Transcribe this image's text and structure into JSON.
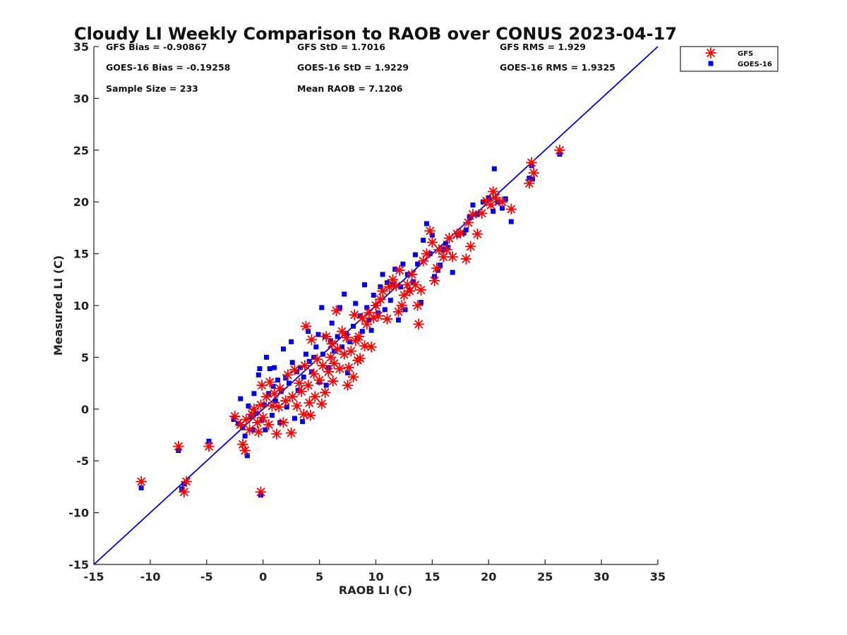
{
  "chart_data": {
    "type": "scatter",
    "title": "Cloudy LI Weekly Comparison to RAOB over CONUS 2023-04-17",
    "xlabel": "RAOB LI (C)",
    "ylabel": "Measured LI (C)",
    "xlim": [
      -15,
      35
    ],
    "ylim": [
      -15,
      35
    ],
    "xticks": [
      "-15",
      "-10",
      "-5",
      "0",
      "5",
      "10",
      "15",
      "20",
      "25",
      "30",
      "35"
    ],
    "yticks": [
      "35",
      "30",
      "25",
      "20",
      "15",
      "10",
      "5",
      "0",
      "-5",
      "-10",
      "-15"
    ],
    "grid": false,
    "legend_position": "top-right",
    "reference_line": {
      "x": [
        -15,
        35
      ],
      "y": [
        -15,
        35
      ],
      "color": "#0000dd"
    },
    "stats": {
      "gfs_bias": "GFS Bias = -0.90867",
      "gfs_std": "GFS StD = 1.7016",
      "gfs_rms": "GFS RMS = 1.929",
      "goes_bias": "GOES-16 Bias = -0.19258",
      "goes_std": "GOES-16 StD = 1.9229",
      "goes_rms": "GOES-16 RMS = 1.9325",
      "sample_size": "Sample Size = 233",
      "mean_raob": "Mean RAOB = 7.1206"
    },
    "series": [
      {
        "name": "GFS",
        "marker": "asterisk",
        "color": "#ff0000",
        "points": [
          [
            -10.8,
            -7.0
          ],
          [
            -7.5,
            -3.6
          ],
          [
            -7.0,
            -8.0
          ],
          [
            -6.8,
            -7.0
          ],
          [
            -4.8,
            -3.6
          ],
          [
            -0.2,
            -8.0
          ],
          [
            -2.5,
            -0.7
          ],
          [
            -2.0,
            -1.5
          ],
          [
            -1.8,
            -3.4
          ],
          [
            -1.6,
            -4.0
          ],
          [
            -1.5,
            -1.0
          ],
          [
            -1.2,
            -2.0
          ],
          [
            -1.0,
            -0.5
          ],
          [
            -0.8,
            0.0
          ],
          [
            -0.5,
            -1.3
          ],
          [
            -0.4,
            -2.2
          ],
          [
            -0.2,
            0.4
          ],
          [
            -0.1,
            2.3
          ],
          [
            0.0,
            -0.8
          ],
          [
            0.3,
            1.2
          ],
          [
            0.5,
            -1.5
          ],
          [
            0.6,
            2.6
          ],
          [
            0.8,
            0.3
          ],
          [
            1.0,
            1.5
          ],
          [
            1.2,
            -2.4
          ],
          [
            1.4,
            0.2
          ],
          [
            1.5,
            2.0
          ],
          [
            1.8,
            -1.3
          ],
          [
            2.0,
            0.8
          ],
          [
            2.2,
            3.3
          ],
          [
            2.5,
            -2.3
          ],
          [
            2.6,
            1.2
          ],
          [
            2.8,
            3.8
          ],
          [
            3.0,
            0.3
          ],
          [
            3.2,
            2.5
          ],
          [
            3.4,
            1.7
          ],
          [
            3.6,
            -0.5
          ],
          [
            3.7,
            4.2
          ],
          [
            3.8,
            8.0
          ],
          [
            4.0,
            2.3
          ],
          [
            4.1,
            0.6
          ],
          [
            4.2,
            -0.6
          ],
          [
            4.3,
            6.7
          ],
          [
            4.5,
            3.4
          ],
          [
            4.6,
            1.2
          ],
          [
            4.8,
            4.8
          ],
          [
            5.0,
            2.8
          ],
          [
            5.2,
            0.5
          ],
          [
            5.3,
            4.2
          ],
          [
            5.5,
            1.6
          ],
          [
            5.6,
            7.0
          ],
          [
            5.8,
            3.6
          ],
          [
            6.0,
            5.0
          ],
          [
            6.1,
            6.3
          ],
          [
            6.2,
            2.7
          ],
          [
            6.3,
            4.4
          ],
          [
            6.5,
            9.5
          ],
          [
            6.6,
            5.8
          ],
          [
            6.8,
            3.9
          ],
          [
            7.0,
            7.5
          ],
          [
            7.2,
            5.3
          ],
          [
            7.4,
            6.9
          ],
          [
            7.5,
            2.3
          ],
          [
            7.6,
            4.0
          ],
          [
            7.8,
            5.6
          ],
          [
            8.0,
            3.1
          ],
          [
            8.1,
            9.1
          ],
          [
            8.2,
            6.6
          ],
          [
            8.4,
            4.7
          ],
          [
            8.5,
            7.0
          ],
          [
            8.6,
            4.9
          ],
          [
            8.8,
            8.8
          ],
          [
            9.0,
            6.1
          ],
          [
            9.2,
            8.2
          ],
          [
            9.4,
            9.3
          ],
          [
            9.6,
            6.0
          ],
          [
            9.8,
            8.8
          ],
          [
            10.0,
            10.0
          ],
          [
            10.2,
            9.0
          ],
          [
            10.4,
            10.6
          ],
          [
            10.6,
            11.4
          ],
          [
            11.0,
            8.7
          ],
          [
            11.2,
            11.8
          ],
          [
            11.5,
            12.5
          ],
          [
            11.8,
            11.9
          ],
          [
            12.0,
            9.4
          ],
          [
            12.1,
            13.4
          ],
          [
            12.3,
            10.0
          ],
          [
            12.5,
            11.0
          ],
          [
            12.8,
            12.0
          ],
          [
            13.0,
            11.4
          ],
          [
            13.2,
            13.0
          ],
          [
            13.5,
            12.0
          ],
          [
            13.7,
            10.0
          ],
          [
            13.8,
            8.2
          ],
          [
            14.0,
            11.5
          ],
          [
            14.2,
            14.3
          ],
          [
            14.5,
            15.0
          ],
          [
            14.8,
            17.2
          ],
          [
            15.0,
            16.1
          ],
          [
            15.2,
            12.4
          ],
          [
            15.4,
            13.6
          ],
          [
            15.6,
            15.4
          ],
          [
            16.0,
            14.7
          ],
          [
            16.3,
            15.4
          ],
          [
            16.5,
            16.5
          ],
          [
            16.8,
            14.7
          ],
          [
            17.2,
            16.9
          ],
          [
            17.5,
            17.0
          ],
          [
            18.0,
            14.5
          ],
          [
            18.2,
            18.0
          ],
          [
            18.4,
            15.7
          ],
          [
            18.6,
            18.8
          ],
          [
            19.0,
            16.9
          ],
          [
            19.4,
            18.9
          ],
          [
            19.8,
            20.1
          ],
          [
            20.2,
            19.7
          ],
          [
            20.4,
            21.0
          ],
          [
            20.6,
            20.4
          ],
          [
            21.2,
            20.0
          ],
          [
            22.0,
            19.3
          ],
          [
            23.6,
            21.8
          ],
          [
            23.8,
            23.8
          ],
          [
            24.0,
            22.8
          ],
          [
            26.3,
            25.0
          ]
        ]
      },
      {
        "name": "GOES-16",
        "marker": "square",
        "color": "#0000ee",
        "points": [
          [
            -10.8,
            -7.6
          ],
          [
            -7.5,
            -4.0
          ],
          [
            -7.2,
            -7.7
          ],
          [
            -7.0,
            -7.2
          ],
          [
            -4.8,
            -3.1
          ],
          [
            -0.2,
            -8.3
          ],
          [
            -2.6,
            -1.0
          ],
          [
            -2.2,
            -1.4
          ],
          [
            -2.0,
            1.0
          ],
          [
            -1.8,
            -1.8
          ],
          [
            -1.6,
            -2.6
          ],
          [
            -1.4,
            -4.5
          ],
          [
            -1.3,
            0.3
          ],
          [
            -1.1,
            -0.7
          ],
          [
            -0.9,
            -2.0
          ],
          [
            -0.8,
            1.5
          ],
          [
            -0.6,
            -0.4
          ],
          [
            -0.4,
            3.3
          ],
          [
            -0.3,
            3.9
          ],
          [
            -0.1,
            -1.1
          ],
          [
            0.1,
            0.4
          ],
          [
            0.2,
            -2.0
          ],
          [
            0.3,
            5.0
          ],
          [
            0.5,
            1.5
          ],
          [
            0.6,
            3.9
          ],
          [
            0.8,
            -0.6
          ],
          [
            0.9,
            2.2
          ],
          [
            1.0,
            4.0
          ],
          [
            1.1,
            0.8
          ],
          [
            1.3,
            2.8
          ],
          [
            1.5,
            -1.3
          ],
          [
            1.6,
            1.7
          ],
          [
            1.8,
            5.8
          ],
          [
            2.0,
            3.0
          ],
          [
            2.1,
            0.2
          ],
          [
            2.3,
            2.5
          ],
          [
            2.5,
            6.5
          ],
          [
            2.6,
            4.5
          ],
          [
            2.8,
            -0.9
          ],
          [
            3.0,
            3.6
          ],
          [
            3.1,
            1.8
          ],
          [
            3.3,
            4.0
          ],
          [
            3.5,
            -1.2
          ],
          [
            3.6,
            3.1
          ],
          [
            3.8,
            5.3
          ],
          [
            4.0,
            7.5
          ],
          [
            4.1,
            4.6
          ],
          [
            4.3,
            3.6
          ],
          [
            4.5,
            5.0
          ],
          [
            4.7,
            6.0
          ],
          [
            4.9,
            7.2
          ],
          [
            5.0,
            2.6
          ],
          [
            5.2,
            9.8
          ],
          [
            5.3,
            5.3
          ],
          [
            5.5,
            7.0
          ],
          [
            5.6,
            2.3
          ],
          [
            5.8,
            4.0
          ],
          [
            6.0,
            6.6
          ],
          [
            6.1,
            8.3
          ],
          [
            6.3,
            5.6
          ],
          [
            6.6,
            7.0
          ],
          [
            6.8,
            9.8
          ],
          [
            7.0,
            6.0
          ],
          [
            7.2,
            11.1
          ],
          [
            7.4,
            7.2
          ],
          [
            7.5,
            3.5
          ],
          [
            7.7,
            6.5
          ],
          [
            8.0,
            8.0
          ],
          [
            8.2,
            10.2
          ],
          [
            8.4,
            6.8
          ],
          [
            8.6,
            9.0
          ],
          [
            8.8,
            7.5
          ],
          [
            9.0,
            12.0
          ],
          [
            9.2,
            9.8
          ],
          [
            9.4,
            8.6
          ],
          [
            9.6,
            7.6
          ],
          [
            9.8,
            11.0
          ],
          [
            10.0,
            10.0
          ],
          [
            10.2,
            9.3
          ],
          [
            10.4,
            11.8
          ],
          [
            10.6,
            13.0
          ],
          [
            10.8,
            9.6
          ],
          [
            11.0,
            12.2
          ],
          [
            11.3,
            10.5
          ],
          [
            11.5,
            12.0
          ],
          [
            11.7,
            13.5
          ],
          [
            12.0,
            8.6
          ],
          [
            12.2,
            11.8
          ],
          [
            12.4,
            14.0
          ],
          [
            12.6,
            9.6
          ],
          [
            12.8,
            13.0
          ],
          [
            13.0,
            11.5
          ],
          [
            13.3,
            12.3
          ],
          [
            13.5,
            14.9
          ],
          [
            13.7,
            14.0
          ],
          [
            14.0,
            10.3
          ],
          [
            14.2,
            16.3
          ],
          [
            14.5,
            17.9
          ],
          [
            14.8,
            15.0
          ],
          [
            15.0,
            16.8
          ],
          [
            15.2,
            12.8
          ],
          [
            15.5,
            13.4
          ],
          [
            15.7,
            13.9
          ],
          [
            16.0,
            15.4
          ],
          [
            16.2,
            16.0
          ],
          [
            16.4,
            15.6
          ],
          [
            16.8,
            13.2
          ],
          [
            17.3,
            16.8
          ],
          [
            17.8,
            17.0
          ],
          [
            18.0,
            17.3
          ],
          [
            18.3,
            18.5
          ],
          [
            18.6,
            19.7
          ],
          [
            19.0,
            18.8
          ],
          [
            19.5,
            20.0
          ],
          [
            20.0,
            20.4
          ],
          [
            20.4,
            19.1
          ],
          [
            20.5,
            23.2
          ],
          [
            20.8,
            20.0
          ],
          [
            21.2,
            19.4
          ],
          [
            21.5,
            20.3
          ],
          [
            22.0,
            18.1
          ],
          [
            23.6,
            22.3
          ],
          [
            23.9,
            22.2
          ],
          [
            23.8,
            23.5
          ],
          [
            26.3,
            24.6
          ]
        ]
      }
    ]
  }
}
